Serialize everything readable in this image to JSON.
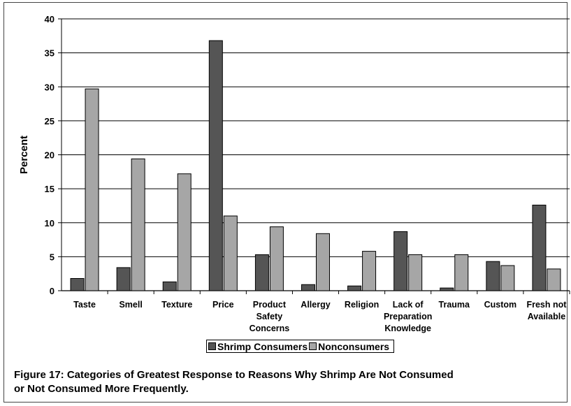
{
  "chart_data": {
    "type": "bar",
    "title": "",
    "xlabel": "",
    "ylabel": "Percent",
    "ylim": [
      0,
      40
    ],
    "yticks": [
      0,
      5,
      10,
      15,
      20,
      25,
      30,
      35,
      40
    ],
    "grid": true,
    "legend_position": "bottom",
    "categories": [
      [
        "Taste"
      ],
      [
        "Smell"
      ],
      [
        "Texture"
      ],
      [
        "Price"
      ],
      [
        "Product",
        "Safety",
        "Concerns"
      ],
      [
        "Allergy"
      ],
      [
        "Religion"
      ],
      [
        "Lack of",
        "Preparation",
        "Knowledge"
      ],
      [
        "Trauma"
      ],
      [
        "Custom"
      ],
      [
        "Fresh not",
        "Available"
      ]
    ],
    "series": [
      {
        "name": "Shrimp Consumers",
        "color": "#555555",
        "values": [
          1.8,
          3.4,
          1.3,
          36.8,
          5.3,
          0.9,
          0.7,
          8.7,
          0.4,
          4.3,
          12.6
        ]
      },
      {
        "name": "Nonconsumers",
        "color": "#a6a6a6",
        "values": [
          29.7,
          19.4,
          17.2,
          11.0,
          9.4,
          8.4,
          5.8,
          5.3,
          5.3,
          3.7,
          3.2
        ]
      }
    ]
  },
  "caption": {
    "line1": "Figure 17: Categories of Greatest Response to Reasons Why Shrimp Are Not Consumed",
    "line2": "or Not Consumed More Frequently."
  }
}
